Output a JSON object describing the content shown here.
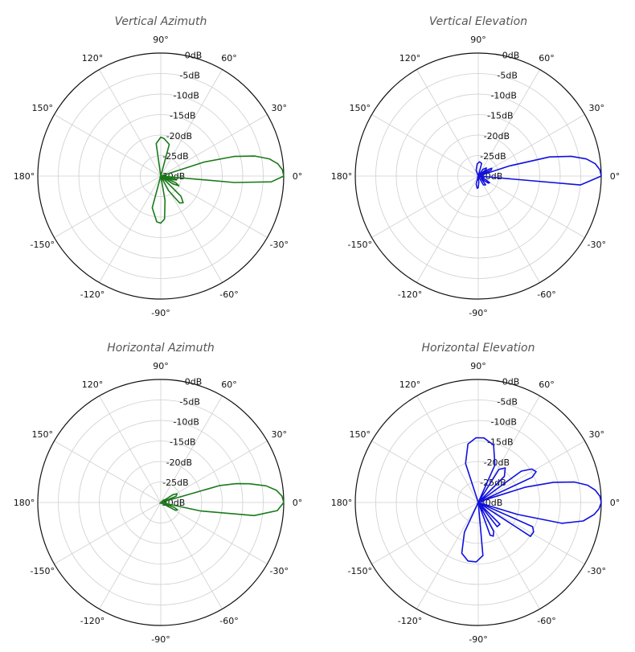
{
  "chart_data": [
    {
      "type": "polar-line",
      "title": "Vertical Azimuth",
      "color": "#1a7a1a",
      "angle_unit": "deg",
      "r_unit": "dB",
      "r_range": [
        -30,
        0
      ],
      "angle_ticks": [
        "0°",
        "30°",
        "60°",
        "90°",
        "120°",
        "150°",
        "180°",
        "-150°",
        "-120°",
        "-90°",
        "-60°",
        "-30°"
      ],
      "r_ticks": [
        "0dB",
        "-5dB",
        "-10dB",
        "-15dB",
        "-20dB",
        "-25dB",
        "-30dB"
      ],
      "series": [
        {
          "name": "Vertical Azimuth",
          "angle": [
            0,
            3,
            6,
            9,
            12,
            15,
            18,
            21,
            30,
            45,
            60,
            75,
            85,
            90,
            98,
            105,
            120,
            150,
            180,
            -150,
            -120,
            -105,
            -95,
            -90,
            -85,
            -80,
            -70,
            -62,
            -55,
            -50,
            -45,
            -40,
            -33,
            -28,
            -24,
            -20,
            -17,
            -14,
            -11,
            -8,
            -5,
            -3,
            0
          ],
          "db": [
            0,
            -0.3,
            -1.3,
            -3.2,
            -6.5,
            -11.5,
            -19,
            -30,
            -30,
            -30,
            -30,
            -22,
            -20.8,
            -20.5,
            -22,
            -30,
            -30,
            -30,
            -30,
            -30,
            -30,
            -22,
            -18.8,
            -18.5,
            -19.5,
            -24,
            -30,
            -26,
            -22,
            -21.5,
            -23,
            -30,
            -26.5,
            -25,
            -26,
            -30,
            -27,
            -26,
            -27,
            -30,
            -12,
            -3,
            0
          ]
        }
      ]
    },
    {
      "type": "polar-line",
      "title": "Vertical Elevation",
      "color": "#1010e0",
      "angle_unit": "deg",
      "r_unit": "dB",
      "r_range": [
        -30,
        0
      ],
      "angle_ticks": [
        "0°",
        "30°",
        "60°",
        "90°",
        "120°",
        "150°",
        "180°",
        "-150°",
        "-120°",
        "-90°",
        "-60°",
        "-30°"
      ],
      "r_ticks": [
        "0dB",
        "-5dB",
        "-10dB",
        "-15dB",
        "-20dB",
        "-25dB",
        "-30dB"
      ],
      "series": [
        {
          "name": "Vertical Elevation",
          "angle": [
            0,
            3,
            6,
            9,
            12,
            15,
            18,
            20,
            25,
            30,
            33,
            36,
            40,
            45,
            55,
            65,
            75,
            85,
            95,
            110,
            130,
            150,
            180,
            -150,
            -130,
            -115,
            -105,
            -95,
            -90,
            -85,
            -75,
            -60,
            -50,
            -40,
            -35,
            -30,
            -25,
            -20,
            -15,
            -10,
            -5,
            0
          ],
          "db": [
            0,
            -0.3,
            -1.3,
            -3.3,
            -6.8,
            -12,
            -22,
            -30,
            -26.5,
            -26.2,
            -27,
            -30,
            -27.5,
            -27.2,
            -28,
            -30,
            -26.8,
            -26.5,
            -27,
            -28.5,
            -30,
            -30,
            -30,
            -30,
            -30,
            -30,
            -28,
            -27,
            -27.2,
            -28.5,
            -30,
            -27.5,
            -27.2,
            -29,
            -27,
            -26.8,
            -28,
            -30,
            -28.8,
            -30,
            -5,
            0
          ]
        }
      ]
    },
    {
      "type": "polar-line",
      "title": "Horizontal Azimuth",
      "color": "#1a7a1a",
      "angle_unit": "deg",
      "r_unit": "dB",
      "r_range": [
        -30,
        0
      ],
      "angle_ticks": [
        "0°",
        "30°",
        "60°",
        "90°",
        "120°",
        "150°",
        "180°",
        "-150°",
        "-120°",
        "-90°",
        "-60°",
        "-30°"
      ],
      "r_ticks": [
        "0dB",
        "-5dB",
        "-10dB",
        "-15dB",
        "-20dB",
        "-25dB",
        "-30dB"
      ],
      "series": [
        {
          "name": "Horizontal Azimuth",
          "angle": [
            0,
            3,
            6,
            9,
            12,
            14,
            16,
            18,
            22,
            28,
            33,
            37,
            40,
            42,
            50,
            60,
            75,
            90,
            110,
            130,
            150,
            180,
            -150,
            -130,
            -110,
            -90,
            -70,
            -50,
            -40,
            -33,
            -28,
            -24,
            -20,
            -16,
            -12,
            -8,
            -4,
            0
          ],
          "db": [
            0,
            -0.4,
            -1.6,
            -4,
            -8,
            -11,
            -15,
            -30,
            -26,
            -25.5,
            -26.5,
            -30,
            -29,
            -30,
            -30,
            -30,
            -30,
            -30,
            -30,
            -30,
            -30,
            -30,
            -30,
            -30,
            -30,
            -30,
            -30,
            -30,
            -30,
            -29.5,
            -26,
            -25.5,
            -26.5,
            -30,
            -20,
            -7,
            -1.5,
            0
          ]
        }
      ]
    },
    {
      "type": "polar-line",
      "title": "Horizontal Elevation",
      "color": "#1010e0",
      "angle_unit": "deg",
      "r_unit": "dB",
      "r_range": [
        -30,
        0
      ],
      "angle_ticks": [
        "0°",
        "30°",
        "60°",
        "90°",
        "120°",
        "150°",
        "180°",
        "-150°",
        "-120°",
        "-90°",
        "-60°",
        "-30°"
      ],
      "r_ticks": [
        "0dB",
        "-5dB",
        "-10dB",
        "-15dB",
        "-20dB",
        "-25dB",
        "-30dB"
      ],
      "series": [
        {
          "name": "Horizontal Elevation",
          "angle": [
            0,
            3,
            6,
            9,
            12,
            15,
            18,
            20,
            22,
            25,
            28,
            32,
            36,
            39,
            45,
            52,
            58,
            62,
            66,
            75,
            85,
            92,
            100,
            108,
            115,
            125,
            140,
            160,
            180,
            -160,
            -140,
            -125,
            -115,
            -108,
            -100,
            -92,
            -85,
            -77,
            -70,
            -66,
            -62,
            -58,
            -52,
            -45,
            -39,
            -33,
            -28,
            -24,
            -20,
            -17,
            -14,
            -10,
            -6,
            -3,
            0
          ],
          "db": [
            0,
            -0.3,
            -1.3,
            -3,
            -6,
            -11,
            -18,
            -27,
            -30,
            -15.5,
            -14,
            -14.6,
            -17,
            -30,
            -21,
            -19.3,
            -20.5,
            -30,
            -20,
            -15.5,
            -14.2,
            -14.2,
            -15.5,
            -20,
            -30,
            -30,
            -30,
            -30,
            -30,
            -30,
            -30,
            -30,
            -22,
            -17,
            -15.5,
            -15.5,
            -17,
            -30,
            -21.5,
            -21,
            -22,
            -30,
            -22.5,
            -22.5,
            -30,
            -14.8,
            -14.7,
            -15.5,
            -30,
            -20,
            -9,
            -4,
            -1.6,
            -0.5,
            0
          ]
        }
      ]
    }
  ]
}
